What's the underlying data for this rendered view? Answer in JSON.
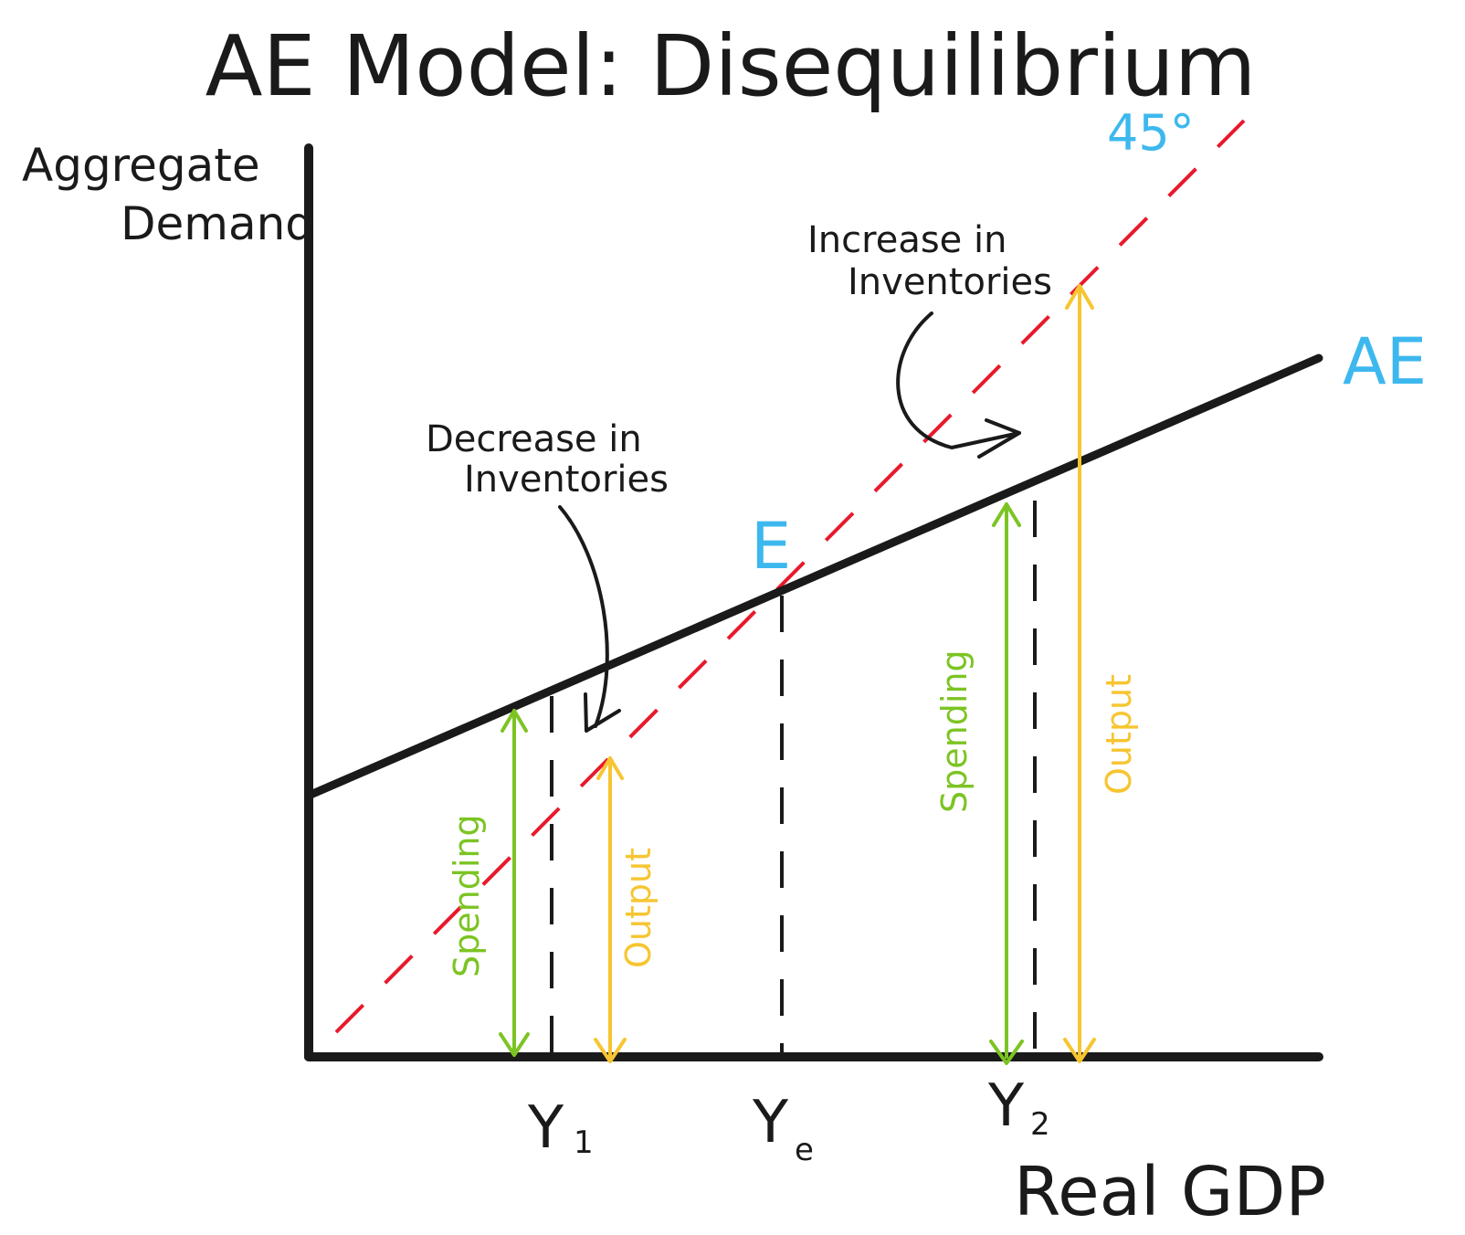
{
  "title": "AE Model: Disequilibrium",
  "y_axis_label_line1": "Aggregate",
  "y_axis_label_line2": "Demand",
  "x_axis_label": "Real GDP",
  "line_labels": {
    "ae": "AE",
    "forty_five": "45°",
    "equilibrium": "E"
  },
  "x_ticks": {
    "y1_main": "Y",
    "y1_sub": "1",
    "ye_main": "Y",
    "ye_sub": "e",
    "y2_main": "Y",
    "y2_sub": "2"
  },
  "annotations": {
    "decrease_line1": "Decrease in",
    "decrease_line2": "Inventories",
    "increase_line1": "Increase in",
    "increase_line2": "Inventories"
  },
  "arrow_labels": {
    "spending_left": "Spending",
    "output_left": "Output",
    "spending_right": "Spending",
    "output_right": "Output"
  },
  "colors": {
    "axis": "#1a1a1a",
    "ae_line": "#1a1a1a",
    "forty_five_line": "#e8192c",
    "spending": "#7cc423",
    "output": "#f7c531",
    "label_blue": "#3db8ee",
    "text": "#1a1a1a"
  }
}
